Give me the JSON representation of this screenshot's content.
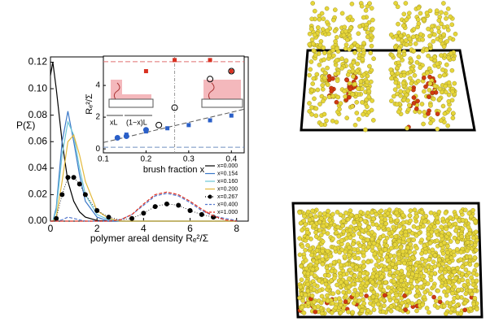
{
  "chart_data": [
    {
      "type": "line",
      "xlabel": "polymer areal density Rₑ²/Σ",
      "ylabel": "P(Σ)",
      "x": [
        0,
        0.1,
        0.25,
        0.5,
        0.75,
        1,
        1.25,
        1.5,
        2,
        2.5,
        3,
        3.5,
        4,
        4.5,
        5,
        5.5,
        6,
        6.5,
        7,
        7.5,
        8
      ],
      "xlim": [
        0,
        8.5
      ],
      "xticks": [
        0,
        2,
        4,
        6,
        8
      ],
      "ylim": [
        0,
        0.124
      ],
      "yticks": [
        {
          "value": 0,
          "label": "0.00"
        },
        {
          "value": 0.02,
          "label": "0.02"
        },
        {
          "value": 0.04,
          "label": "0.04"
        },
        {
          "value": 0.06,
          "label": "0.06"
        },
        {
          "value": 0.08,
          "label": "0.08"
        },
        {
          "value": 0.1,
          "label": "0.10"
        },
        {
          "value": 0.12,
          "label": "0.12"
        }
      ],
      "legend": "lower right",
      "series": [
        {
          "name": "x=0.000",
          "color": "#000000",
          "style": "solid",
          "values": [
            0.11,
            0.12,
            0.1,
            0.06,
            0.03,
            0.015,
            0.007,
            0.003,
            0.0005,
            0,
            0,
            0,
            0,
            0,
            0,
            0,
            0,
            0,
            0,
            0,
            0
          ]
        },
        {
          "name": "x=0.154",
          "color": "#3a78c8",
          "style": "solid",
          "values": [
            0,
            0,
            0.01,
            0.06,
            0.083,
            0.06,
            0.035,
            0.015,
            0.003,
            0,
            0,
            0,
            0,
            0,
            0,
            0,
            0,
            0,
            0,
            0,
            0
          ]
        },
        {
          "name": "x=0.160",
          "color": "#6cc6d6",
          "style": "solid",
          "values": [
            0,
            0,
            0.008,
            0.05,
            0.075,
            0.065,
            0.04,
            0.02,
            0.005,
            0.001,
            0,
            0,
            0,
            0,
            0,
            0,
            0,
            0,
            0,
            0,
            0
          ]
        },
        {
          "name": "x=0.200",
          "color": "#e3b93c",
          "style": "solid",
          "values": [
            0,
            0,
            0.003,
            0.03,
            0.06,
            0.065,
            0.05,
            0.03,
            0.008,
            0.002,
            0,
            0,
            0,
            0,
            0,
            0,
            0,
            0,
            0,
            0,
            0
          ]
        },
        {
          "name": "x=0.267",
          "color": "#000000",
          "style": "dots",
          "values": [
            0,
            0,
            0.002,
            0.02,
            0.033,
            0.033,
            0.028,
            0.02,
            0.008,
            0.003,
            0.001,
            0.002,
            0.006,
            0.011,
            0.013,
            0.012,
            0.008,
            0.005,
            0.003,
            0.001,
            0
          ]
        },
        {
          "name": "x=0.400",
          "color": "#5577cc",
          "style": "dashed",
          "values": [
            0,
            0,
            0,
            0.001,
            0.003,
            0.002,
            0.001,
            0,
            0,
            0,
            0.001,
            0.005,
            0.012,
            0.019,
            0.021,
            0.019,
            0.014,
            0.008,
            0.004,
            0.002,
            0.0005
          ]
        },
        {
          "name": "x=1.000",
          "color": "#e03020",
          "style": "dashed",
          "values": [
            0,
            0,
            0,
            0,
            0,
            0,
            0,
            0,
            0,
            0,
            0.001,
            0.005,
            0.013,
            0.02,
            0.022,
            0.02,
            0.015,
            0.009,
            0.004,
            0.001,
            0
          ]
        }
      ]
    },
    {
      "type": "scatter",
      "xlabel": "brush fraction x",
      "ylabel": "Rₑ²/Σ",
      "xlim": [
        0.1,
        0.43
      ],
      "xticks": [
        0.1,
        0.2,
        0.3,
        0.4
      ],
      "ylim": [
        -0.25,
        5.85
      ],
      "yticks": [
        0,
        2,
        4
      ],
      "annotations": [
        "xL",
        "(1−x)L"
      ],
      "reference_lines": [
        {
          "axis": "y",
          "value": 5.5,
          "color": "#e07070"
        },
        {
          "axis": "y",
          "value": 0.1,
          "color": "#7090c0"
        },
        {
          "axis": "x",
          "value": 0.267,
          "color": "#999999"
        }
      ],
      "fit_line": {
        "x": [
          0.1,
          0.43
        ],
        "values": [
          0.4,
          2.5
        ],
        "color": "#555555"
      },
      "series": [
        {
          "color": "#d83020",
          "marker": "square",
          "x": [
            0.2,
            0.267,
            0.35,
            0.4
          ],
          "values": [
            4.9,
            5.6,
            5.6,
            4.9
          ]
        },
        {
          "color": "#000000",
          "marker": "open-circle",
          "x": [
            0.23,
            0.267,
            0.35,
            0.4
          ],
          "values": [
            1.5,
            2.6,
            4.4,
            4.9
          ]
        },
        {
          "color": "#2a5fc8",
          "marker": "square",
          "x": [
            0.154,
            0.2,
            0.25,
            0.3,
            0.35,
            0.4
          ],
          "values": [
            0.9,
            1.1,
            1.3,
            1.5,
            1.8,
            2.1
          ]
        },
        {
          "color": "#2a5fc8",
          "marker": "circle",
          "x": [
            0.133,
            0.154,
            0.2
          ],
          "values": [
            0.7,
            0.8,
            1.2
          ]
        }
      ]
    }
  ]
}
